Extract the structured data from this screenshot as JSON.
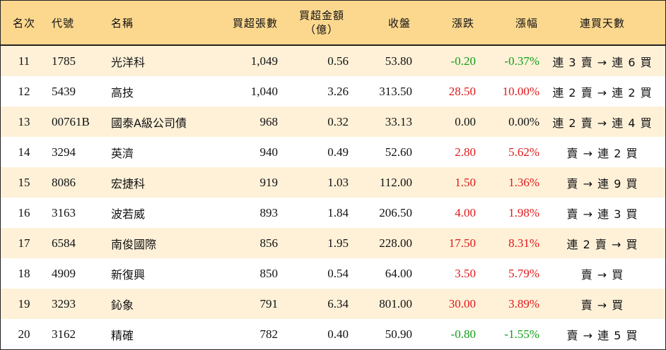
{
  "colors": {
    "header_bg": "#fcd88f",
    "odd_row_bg": "#fef1d8",
    "up": "#e0191b",
    "down": "#119e16",
    "flat": "#111111"
  },
  "headers": {
    "rank": "名次",
    "code": "代號",
    "name": "名稱",
    "volume": "買超張數",
    "amount_line1": "買超金額",
    "amount_line2": "（億）",
    "close": "收盤",
    "change": "漲跌",
    "change_pct": "漲幅",
    "days": "連買天數"
  },
  "rows": [
    {
      "rank": "11",
      "code": "1785",
      "name": "光洋科",
      "volume": "1,049",
      "amount": "0.56",
      "close": "53.80",
      "change": "-0.20",
      "change_pct": "-0.37%",
      "days": "連 3 賣 → 連 6 買",
      "trend": "down"
    },
    {
      "rank": "12",
      "code": "5439",
      "name": "高技",
      "volume": "1,040",
      "amount": "3.26",
      "close": "313.50",
      "change": "28.50",
      "change_pct": "10.00%",
      "days": "連 2 賣 → 連 2 買",
      "trend": "up"
    },
    {
      "rank": "13",
      "code": "00761B",
      "name": "國泰A級公司債",
      "volume": "968",
      "amount": "0.32",
      "close": "33.13",
      "change": "0.00",
      "change_pct": "0.00%",
      "days": "連 2 賣 → 連 4 買",
      "trend": "flat"
    },
    {
      "rank": "14",
      "code": "3294",
      "name": "英濟",
      "volume": "940",
      "amount": "0.49",
      "close": "52.60",
      "change": "2.80",
      "change_pct": "5.62%",
      "days": "賣 → 連 2 買",
      "trend": "up"
    },
    {
      "rank": "15",
      "code": "8086",
      "name": "宏捷科",
      "volume": "919",
      "amount": "1.03",
      "close": "112.00",
      "change": "1.50",
      "change_pct": "1.36%",
      "days": "賣 → 連 9 買",
      "trend": "up"
    },
    {
      "rank": "16",
      "code": "3163",
      "name": "波若威",
      "volume": "893",
      "amount": "1.84",
      "close": "206.50",
      "change": "4.00",
      "change_pct": "1.98%",
      "days": "賣 → 連 3 買",
      "trend": "up"
    },
    {
      "rank": "17",
      "code": "6584",
      "name": "南俊國際",
      "volume": "856",
      "amount": "1.95",
      "close": "228.00",
      "change": "17.50",
      "change_pct": "8.31%",
      "days": "連 2 賣 → 買",
      "trend": "up"
    },
    {
      "rank": "18",
      "code": "4909",
      "name": "新復興",
      "volume": "850",
      "amount": "0.54",
      "close": "64.00",
      "change": "3.50",
      "change_pct": "5.79%",
      "days": "賣 → 買",
      "trend": "up"
    },
    {
      "rank": "19",
      "code": "3293",
      "name": "鈊象",
      "volume": "791",
      "amount": "6.34",
      "close": "801.00",
      "change": "30.00",
      "change_pct": "3.89%",
      "days": "賣 → 買",
      "trend": "up"
    },
    {
      "rank": "20",
      "code": "3162",
      "name": "精確",
      "volume": "782",
      "amount": "0.40",
      "close": "50.90",
      "change": "-0.80",
      "change_pct": "-1.55%",
      "days": "賣 → 連 5 買",
      "trend": "down"
    }
  ]
}
